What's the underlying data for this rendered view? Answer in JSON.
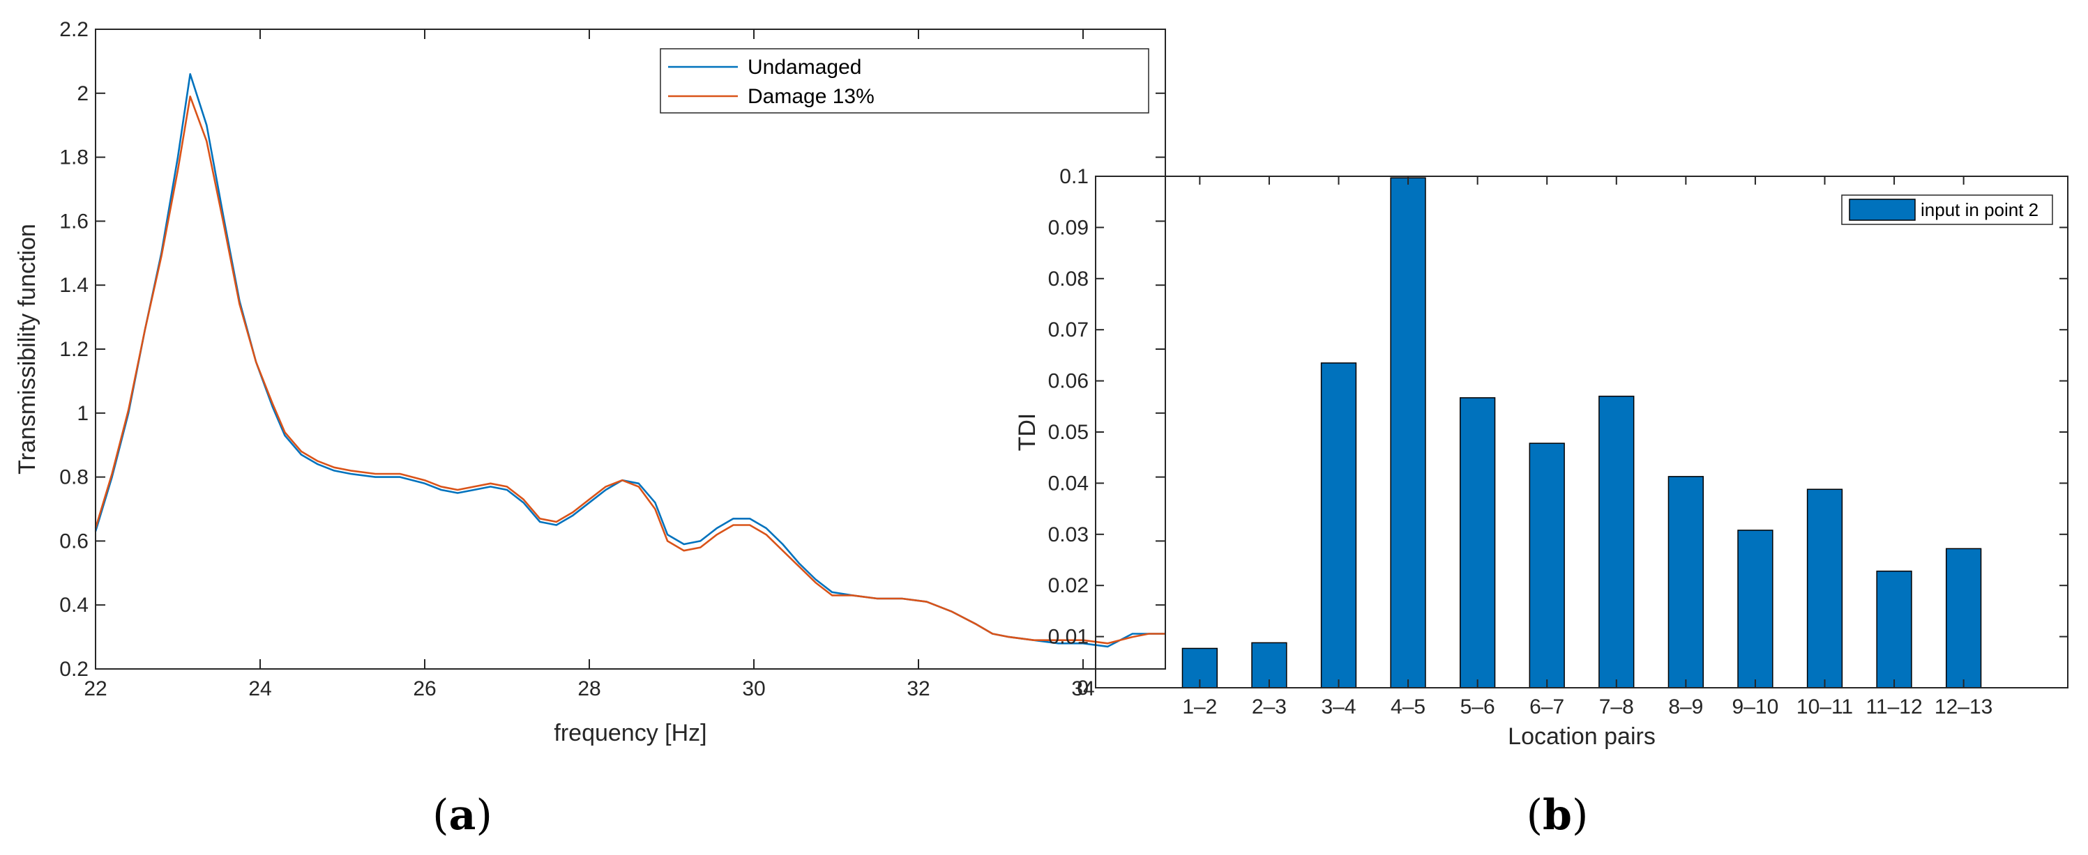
{
  "panels": {
    "a": {
      "label_open": "(",
      "label_letter": "a",
      "label_close": ")"
    },
    "b": {
      "label_open": "(",
      "label_letter": "b",
      "label_close": ")"
    }
  },
  "chart_data": [
    {
      "type": "line",
      "title": "",
      "xlabel": "frequency [Hz]",
      "ylabel": "Transmissibility function",
      "xlim": [
        22,
        35
      ],
      "ylim": [
        0.2,
        2.2
      ],
      "xticks": [
        22,
        24,
        26,
        28,
        30,
        32,
        34
      ],
      "yticks": [
        0.2,
        0.4,
        0.6,
        0.8,
        1,
        1.2,
        1.4,
        1.6,
        1.8,
        2,
        2.2
      ],
      "grid": false,
      "legend_position": "top-right",
      "series": [
        {
          "name": "Undamaged",
          "color": "#0072BD",
          "x": [
            22,
            22.2,
            22.4,
            22.6,
            22.8,
            23.0,
            23.15,
            23.35,
            23.55,
            23.75,
            23.95,
            24.15,
            24.3,
            24.5,
            24.7,
            24.9,
            25.1,
            25.4,
            25.7,
            26.0,
            26.2,
            26.4,
            26.6,
            26.8,
            27.0,
            27.2,
            27.4,
            27.6,
            27.8,
            28.0,
            28.2,
            28.4,
            28.6,
            28.8,
            28.95,
            29.15,
            29.35,
            29.55,
            29.75,
            29.95,
            30.15,
            30.35,
            30.55,
            30.75,
            30.95,
            31.2,
            31.5,
            31.8,
            32.1,
            32.4,
            32.7,
            32.9,
            33.1,
            33.4,
            33.7,
            34.0,
            34.3,
            34.6,
            34.8,
            35.0
          ],
          "y": [
            0.63,
            0.8,
            1.0,
            1.26,
            1.5,
            1.8,
            2.06,
            1.9,
            1.62,
            1.35,
            1.16,
            1.02,
            0.93,
            0.87,
            0.84,
            0.82,
            0.81,
            0.8,
            0.8,
            0.78,
            0.76,
            0.75,
            0.76,
            0.77,
            0.76,
            0.72,
            0.66,
            0.65,
            0.68,
            0.72,
            0.76,
            0.79,
            0.78,
            0.72,
            0.62,
            0.59,
            0.6,
            0.64,
            0.67,
            0.67,
            0.64,
            0.59,
            0.53,
            0.48,
            0.44,
            0.43,
            0.42,
            0.42,
            0.41,
            0.38,
            0.34,
            0.31,
            0.3,
            0.29,
            0.28,
            0.28,
            0.27,
            0.31,
            0.31,
            0.31
          ]
        },
        {
          "name": "Damage 13%",
          "color": "#D95319",
          "x": [
            22,
            22.2,
            22.4,
            22.6,
            22.8,
            23.0,
            23.15,
            23.35,
            23.55,
            23.75,
            23.95,
            24.15,
            24.3,
            24.5,
            24.7,
            24.9,
            25.1,
            25.4,
            25.7,
            26.0,
            26.2,
            26.4,
            26.6,
            26.8,
            27.0,
            27.2,
            27.4,
            27.6,
            27.8,
            28.0,
            28.2,
            28.4,
            28.6,
            28.8,
            28.95,
            29.15,
            29.35,
            29.55,
            29.75,
            29.95,
            30.15,
            30.35,
            30.55,
            30.75,
            30.95,
            31.2,
            31.5,
            31.8,
            32.1,
            32.4,
            32.7,
            32.9,
            33.1,
            33.4,
            33.7,
            34.0,
            34.3,
            34.6,
            34.8,
            35.0
          ],
          "y": [
            0.64,
            0.81,
            1.01,
            1.26,
            1.49,
            1.76,
            1.99,
            1.85,
            1.6,
            1.34,
            1.16,
            1.03,
            0.94,
            0.88,
            0.85,
            0.83,
            0.82,
            0.81,
            0.81,
            0.79,
            0.77,
            0.76,
            0.77,
            0.78,
            0.77,
            0.73,
            0.67,
            0.66,
            0.69,
            0.73,
            0.77,
            0.79,
            0.77,
            0.7,
            0.6,
            0.57,
            0.58,
            0.62,
            0.65,
            0.65,
            0.62,
            0.57,
            0.52,
            0.47,
            0.43,
            0.43,
            0.42,
            0.42,
            0.41,
            0.38,
            0.34,
            0.31,
            0.3,
            0.29,
            0.29,
            0.29,
            0.28,
            0.3,
            0.31,
            0.31
          ]
        }
      ]
    },
    {
      "type": "bar",
      "title": "",
      "xlabel": "Location pairs",
      "ylabel": "TDI",
      "categories": [
        "1–2",
        "2–3",
        "3–4",
        "4–5",
        "5–6",
        "6–7",
        "7–8",
        "8–9",
        "9–10",
        "10–11",
        "11–12",
        "12–13"
      ],
      "series": [
        {
          "name": "input in point 2",
          "color": "#0072BD",
          "values": [
            0.0077,
            0.0088,
            0.0635,
            0.0997,
            0.0567,
            0.0478,
            0.057,
            0.0413,
            0.0308,
            0.0388,
            0.0228,
            0.0272
          ]
        }
      ],
      "ylim": [
        0,
        0.1
      ],
      "yticks": [
        "0",
        "0.01",
        "0.02",
        "0.03",
        "0.04",
        "0.05",
        "0.06",
        "0.07",
        "0.08",
        "0.09",
        "0.1"
      ],
      "grid": false,
      "legend_position": "top-right"
    }
  ]
}
